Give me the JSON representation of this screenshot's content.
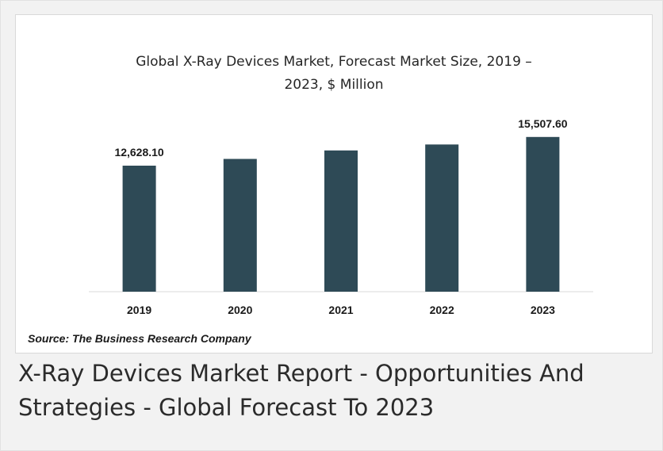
{
  "chart_data": {
    "type": "bar",
    "title_lines": [
      "Global X-Ray Devices Market, Forecast Market Size, 2019 –",
      "2023, $ Million"
    ],
    "categories": [
      "2019",
      "2020",
      "2021",
      "2022",
      "2023"
    ],
    "values": [
      12628.1,
      13300,
      14150,
      14750,
      15507.6
    ],
    "data_labels": [
      "12,628.10",
      "",
      "",
      "",
      "15,507.60"
    ],
    "bar_color": "#2e4a56",
    "ylim": [
      0,
      16600
    ],
    "grid": false,
    "legend": "none"
  },
  "source": "Source: The Business Research Company",
  "caption": "X-Ray Devices Market Report - Opportunities And Strategies - Global Forecast To 2023"
}
